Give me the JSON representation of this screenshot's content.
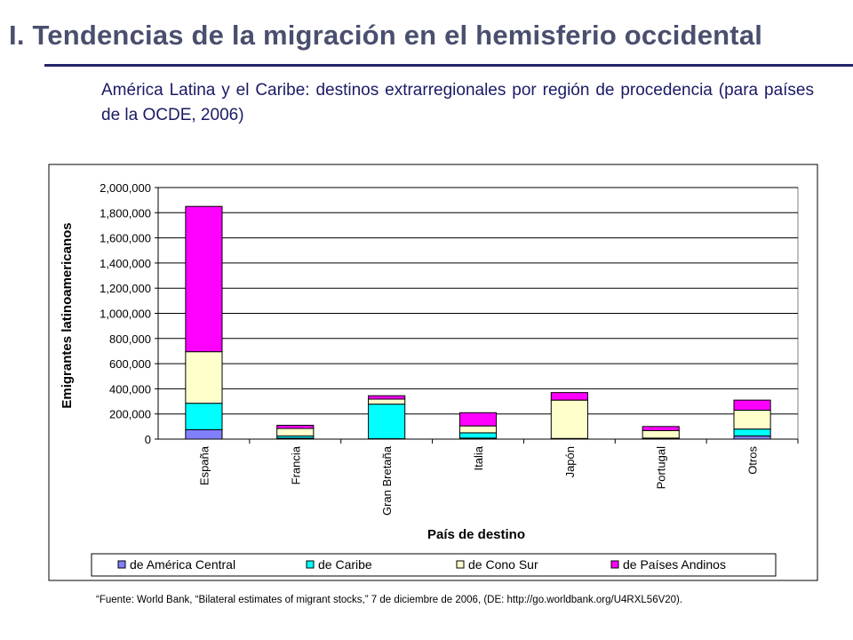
{
  "slide": {
    "title": "I. Tendencias  de la migración en el hemisferio occidental",
    "subtitle": "América Latina y el Caribe: destinos extrarregionales por región de procedencia (para países de la OCDE, 2006)",
    "source": "“Fuente: World Bank, “Bilateral estimates of migrant stocks,” 7 de diciembre de 2006, (DE: http://go.worldbank.org/U4RXL56V20)."
  },
  "chart_data": {
    "type": "bar",
    "stacked": true,
    "categories": [
      "España",
      "Francia",
      "Gran Bretaña",
      "Italia",
      "Japón",
      "Portugal",
      "Otros"
    ],
    "series": [
      {
        "name": "de América Central",
        "color": "#8080ff",
        "values": [
          75000,
          8000,
          3000,
          8000,
          1000,
          3000,
          25000
        ]
      },
      {
        "name": "de Caribe",
        "color": "#00ffff",
        "values": [
          210000,
          17000,
          275000,
          42000,
          4000,
          5000,
          55000
        ]
      },
      {
        "name": "de Cono Sur",
        "color": "#ffffcc",
        "values": [
          410000,
          60000,
          40000,
          55000,
          305000,
          60000,
          150000
        ]
      },
      {
        "name": "de Países Andinos",
        "color": "#ff00ff",
        "values": [
          1155000,
          25000,
          27000,
          105000,
          60000,
          32000,
          80000
        ]
      }
    ],
    "xlabel": "País de destino",
    "ylabel": "Emigrantes latinoamericanos",
    "ylim": [
      0,
      2000000
    ],
    "yticks": [
      0,
      200000,
      400000,
      600000,
      800000,
      1000000,
      1200000,
      1400000,
      1600000,
      1800000,
      2000000
    ],
    "ytick_labels": [
      "0",
      "200,000",
      "400,000",
      "600,000",
      "800,000",
      "1,000,000",
      "1,200,000",
      "1,400,000",
      "1,600,000",
      "1,800,000",
      "2,000,000"
    ],
    "grid": true,
    "legend_position": "bottom"
  }
}
